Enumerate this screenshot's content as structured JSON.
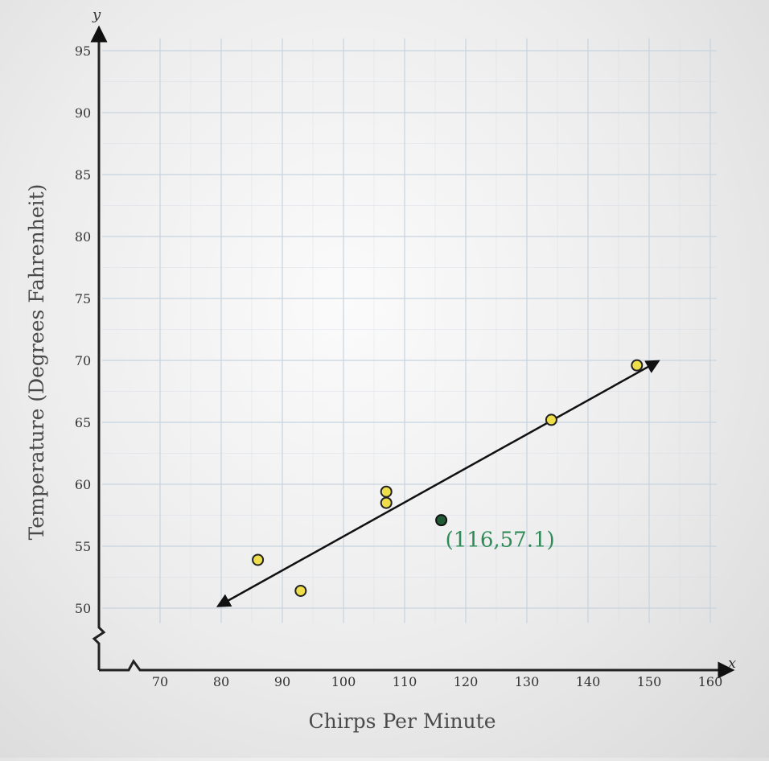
{
  "chart_data": {
    "type": "scatter",
    "xlabel": "Chirps Per Minute",
    "ylabel": "Temperature (Degrees Fahrenheit)",
    "x_axis_letter": "x",
    "y_axis_letter": "y",
    "xlim": [
      60,
      160
    ],
    "ylim": [
      45,
      95
    ],
    "x_ticks": [
      70,
      80,
      90,
      100,
      110,
      120,
      130,
      140,
      150,
      160
    ],
    "y_ticks": [
      50,
      55,
      60,
      65,
      70,
      75,
      80,
      85,
      90,
      95
    ],
    "grid": true,
    "axis_breaks": true,
    "points": [
      {
        "x": 86,
        "y": 53.9
      },
      {
        "x": 93,
        "y": 51.4
      },
      {
        "x": 107,
        "y": 59.4
      },
      {
        "x": 107,
        "y": 58.5
      },
      {
        "x": 134,
        "y": 65.2
      },
      {
        "x": 148,
        "y": 69.6
      }
    ],
    "highlight_point": {
      "x": 116,
      "y": 57.1,
      "label": "(116,57.1)"
    },
    "trend_line": {
      "x1": 80,
      "y1": 50.3,
      "x2": 151,
      "y2": 69.8,
      "arrows": "both"
    },
    "colors": {
      "point_fill": "#eedf4a",
      "highlight_fill": "#1f5a35",
      "annotation": "#2e8b57",
      "grid": "#c7d3e0",
      "axis": "#222222"
    }
  }
}
